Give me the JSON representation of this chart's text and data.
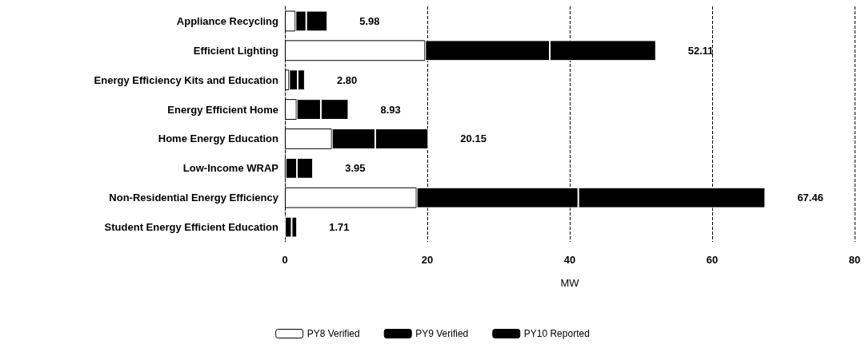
{
  "chart_data": {
    "type": "bar",
    "orientation": "horizontal",
    "stacked": true,
    "xlabel": "MW",
    "categories": [
      "Appliance Recycling",
      "Efficient Lighting",
      "Energy Efficiency Kits and Education",
      "Energy Efficient Home",
      "Home Energy Education",
      "Low-Income WRAP",
      "Non-Residential Energy Efficiency",
      "Student Energy Efficient Education"
    ],
    "series": [
      {
        "name": "PY8 Verified",
        "color": "#ffffff",
        "values": [
          1.5,
          19.7,
          0.6,
          1.65,
          6.6,
          0.1,
          18.5,
          null
        ]
      },
      {
        "name": "PY9 Verified",
        "color": "#000000",
        "values": [
          1.5,
          17.5,
          1.2,
          3.4,
          6.1,
          1.6,
          22.7,
          0.95
        ]
      },
      {
        "name": "PY10 Reported",
        "color": "#000000",
        "values": [
          2.98,
          14.91,
          1.0,
          3.88,
          7.45,
          2.25,
          26.26,
          0.76
        ]
      }
    ],
    "totals": [
      "5.98",
      "52.11",
      "2.80",
      "8.93",
      "20.15",
      "3.95",
      "67.46",
      "1.71"
    ],
    "xlim": [
      0,
      80
    ],
    "xticks": [
      0,
      20,
      40,
      60,
      80
    ],
    "grid": "x",
    "legend": "bottom"
  }
}
